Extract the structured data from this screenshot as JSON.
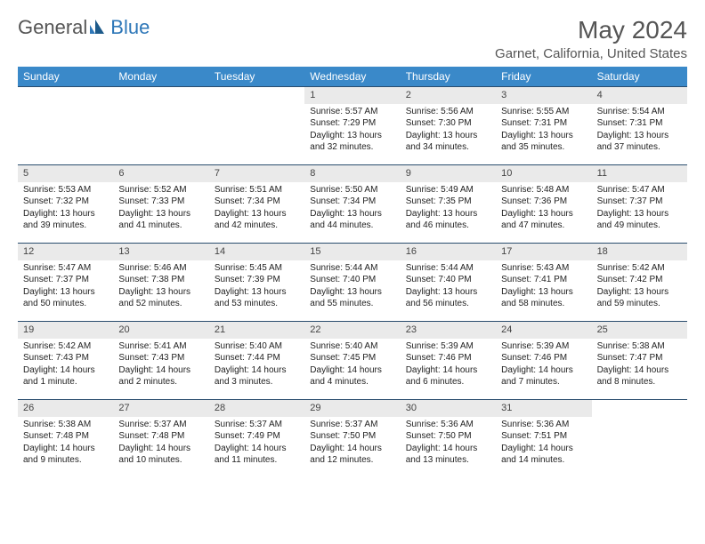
{
  "logo": {
    "general": "General",
    "blue": "Blue"
  },
  "title": "May 2024",
  "location": "Garnet, California, United States",
  "colors": {
    "header_bg": "#3a89c9",
    "header_text": "#ffffff",
    "rule": "#2a4d6e",
    "daynum_bg": "#eaeaea",
    "logo_blue": "#2e77b8",
    "page_bg": "#ffffff"
  },
  "dayHeaders": [
    "Sunday",
    "Monday",
    "Tuesday",
    "Wednesday",
    "Thursday",
    "Friday",
    "Saturday"
  ],
  "weeks": [
    [
      null,
      null,
      null,
      {
        "d": "1",
        "sr": "Sunrise: 5:57 AM",
        "ss": "Sunset: 7:29 PM",
        "dl1": "Daylight: 13 hours",
        "dl2": "and 32 minutes."
      },
      {
        "d": "2",
        "sr": "Sunrise: 5:56 AM",
        "ss": "Sunset: 7:30 PM",
        "dl1": "Daylight: 13 hours",
        "dl2": "and 34 minutes."
      },
      {
        "d": "3",
        "sr": "Sunrise: 5:55 AM",
        "ss": "Sunset: 7:31 PM",
        "dl1": "Daylight: 13 hours",
        "dl2": "and 35 minutes."
      },
      {
        "d": "4",
        "sr": "Sunrise: 5:54 AM",
        "ss": "Sunset: 7:31 PM",
        "dl1": "Daylight: 13 hours",
        "dl2": "and 37 minutes."
      }
    ],
    [
      {
        "d": "5",
        "sr": "Sunrise: 5:53 AM",
        "ss": "Sunset: 7:32 PM",
        "dl1": "Daylight: 13 hours",
        "dl2": "and 39 minutes."
      },
      {
        "d": "6",
        "sr": "Sunrise: 5:52 AM",
        "ss": "Sunset: 7:33 PM",
        "dl1": "Daylight: 13 hours",
        "dl2": "and 41 minutes."
      },
      {
        "d": "7",
        "sr": "Sunrise: 5:51 AM",
        "ss": "Sunset: 7:34 PM",
        "dl1": "Daylight: 13 hours",
        "dl2": "and 42 minutes."
      },
      {
        "d": "8",
        "sr": "Sunrise: 5:50 AM",
        "ss": "Sunset: 7:34 PM",
        "dl1": "Daylight: 13 hours",
        "dl2": "and 44 minutes."
      },
      {
        "d": "9",
        "sr": "Sunrise: 5:49 AM",
        "ss": "Sunset: 7:35 PM",
        "dl1": "Daylight: 13 hours",
        "dl2": "and 46 minutes."
      },
      {
        "d": "10",
        "sr": "Sunrise: 5:48 AM",
        "ss": "Sunset: 7:36 PM",
        "dl1": "Daylight: 13 hours",
        "dl2": "and 47 minutes."
      },
      {
        "d": "11",
        "sr": "Sunrise: 5:47 AM",
        "ss": "Sunset: 7:37 PM",
        "dl1": "Daylight: 13 hours",
        "dl2": "and 49 minutes."
      }
    ],
    [
      {
        "d": "12",
        "sr": "Sunrise: 5:47 AM",
        "ss": "Sunset: 7:37 PM",
        "dl1": "Daylight: 13 hours",
        "dl2": "and 50 minutes."
      },
      {
        "d": "13",
        "sr": "Sunrise: 5:46 AM",
        "ss": "Sunset: 7:38 PM",
        "dl1": "Daylight: 13 hours",
        "dl2": "and 52 minutes."
      },
      {
        "d": "14",
        "sr": "Sunrise: 5:45 AM",
        "ss": "Sunset: 7:39 PM",
        "dl1": "Daylight: 13 hours",
        "dl2": "and 53 minutes."
      },
      {
        "d": "15",
        "sr": "Sunrise: 5:44 AM",
        "ss": "Sunset: 7:40 PM",
        "dl1": "Daylight: 13 hours",
        "dl2": "and 55 minutes."
      },
      {
        "d": "16",
        "sr": "Sunrise: 5:44 AM",
        "ss": "Sunset: 7:40 PM",
        "dl1": "Daylight: 13 hours",
        "dl2": "and 56 minutes."
      },
      {
        "d": "17",
        "sr": "Sunrise: 5:43 AM",
        "ss": "Sunset: 7:41 PM",
        "dl1": "Daylight: 13 hours",
        "dl2": "and 58 minutes."
      },
      {
        "d": "18",
        "sr": "Sunrise: 5:42 AM",
        "ss": "Sunset: 7:42 PM",
        "dl1": "Daylight: 13 hours",
        "dl2": "and 59 minutes."
      }
    ],
    [
      {
        "d": "19",
        "sr": "Sunrise: 5:42 AM",
        "ss": "Sunset: 7:43 PM",
        "dl1": "Daylight: 14 hours",
        "dl2": "and 1 minute."
      },
      {
        "d": "20",
        "sr": "Sunrise: 5:41 AM",
        "ss": "Sunset: 7:43 PM",
        "dl1": "Daylight: 14 hours",
        "dl2": "and 2 minutes."
      },
      {
        "d": "21",
        "sr": "Sunrise: 5:40 AM",
        "ss": "Sunset: 7:44 PM",
        "dl1": "Daylight: 14 hours",
        "dl2": "and 3 minutes."
      },
      {
        "d": "22",
        "sr": "Sunrise: 5:40 AM",
        "ss": "Sunset: 7:45 PM",
        "dl1": "Daylight: 14 hours",
        "dl2": "and 4 minutes."
      },
      {
        "d": "23",
        "sr": "Sunrise: 5:39 AM",
        "ss": "Sunset: 7:46 PM",
        "dl1": "Daylight: 14 hours",
        "dl2": "and 6 minutes."
      },
      {
        "d": "24",
        "sr": "Sunrise: 5:39 AM",
        "ss": "Sunset: 7:46 PM",
        "dl1": "Daylight: 14 hours",
        "dl2": "and 7 minutes."
      },
      {
        "d": "25",
        "sr": "Sunrise: 5:38 AM",
        "ss": "Sunset: 7:47 PM",
        "dl1": "Daylight: 14 hours",
        "dl2": "and 8 minutes."
      }
    ],
    [
      {
        "d": "26",
        "sr": "Sunrise: 5:38 AM",
        "ss": "Sunset: 7:48 PM",
        "dl1": "Daylight: 14 hours",
        "dl2": "and 9 minutes."
      },
      {
        "d": "27",
        "sr": "Sunrise: 5:37 AM",
        "ss": "Sunset: 7:48 PM",
        "dl1": "Daylight: 14 hours",
        "dl2": "and 10 minutes."
      },
      {
        "d": "28",
        "sr": "Sunrise: 5:37 AM",
        "ss": "Sunset: 7:49 PM",
        "dl1": "Daylight: 14 hours",
        "dl2": "and 11 minutes."
      },
      {
        "d": "29",
        "sr": "Sunrise: 5:37 AM",
        "ss": "Sunset: 7:50 PM",
        "dl1": "Daylight: 14 hours",
        "dl2": "and 12 minutes."
      },
      {
        "d": "30",
        "sr": "Sunrise: 5:36 AM",
        "ss": "Sunset: 7:50 PM",
        "dl1": "Daylight: 14 hours",
        "dl2": "and 13 minutes."
      },
      {
        "d": "31",
        "sr": "Sunrise: 5:36 AM",
        "ss": "Sunset: 7:51 PM",
        "dl1": "Daylight: 14 hours",
        "dl2": "and 14 minutes."
      },
      null
    ]
  ]
}
